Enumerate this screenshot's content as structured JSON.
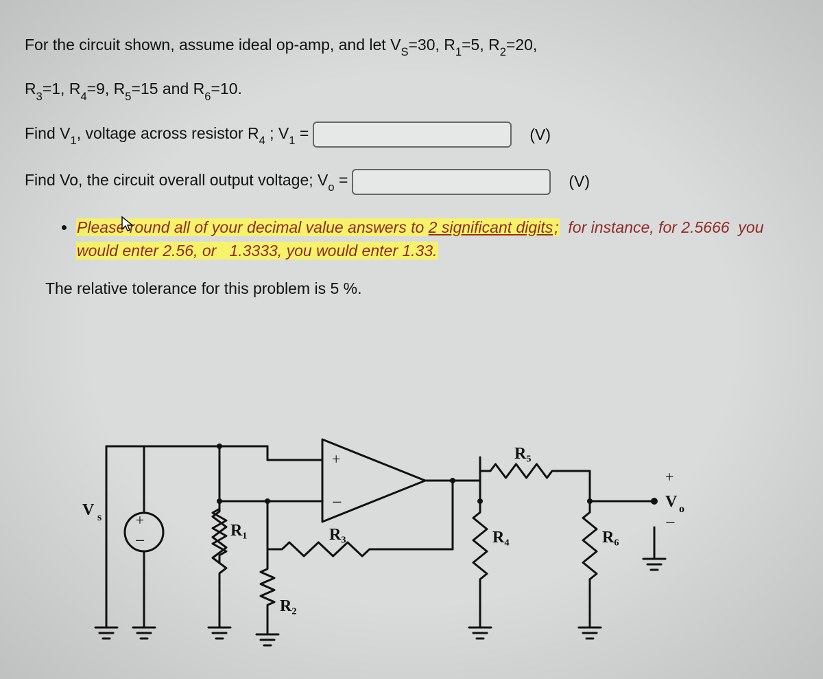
{
  "text": {
    "line1_a": "For the circuit shown, assume ideal op-amp, and let V",
    "line1_b": "=30,   R",
    "line1_c": "=5,  R",
    "line1_d": "=20,",
    "sub_S": "S",
    "sub_1": "1",
    "sub_2": "2",
    "line2_a": "R",
    "line2_b": "=1,  R",
    "line2_c": "=9,  R",
    "line2_d": "=15  and R",
    "line2_e": "=10.",
    "sub_3": "3",
    "sub_4": "4",
    "sub_5": "5",
    "sub_6": "6",
    "q1_a": "Find  V",
    "q1_b": ", voltage across resistor R",
    "q1_c": " ;   V",
    "q1_d": " = ",
    "unit_v": "(V)",
    "q2_a": "Find Vo,  the circuit overall output voltage; V",
    "sub_o": "o",
    "q2_b": " = ",
    "note_a": "Please round all of your decimal value answers to  ",
    "note_b": "2 significant digits",
    "note_c": ";  for instance, for 2.5666  you would enter 2.56, or   1.3333, you would enter 1.33.",
    "tolerance": "The relative tolerance for this problem is 5 %."
  },
  "circuit": {
    "stroke": "#111111",
    "stroke_width": 3,
    "labels": {
      "Vs": "V",
      "Vs_sub": "s",
      "R1": "R₁",
      "R2": "R₂",
      "R3": "R₃",
      "R4": "R₄",
      "R5": "R₅",
      "R6": "R₆",
      "plus": "+",
      "minus": "−",
      "Vo": "V",
      "Vo_sub": "o"
    },
    "font_size": 24,
    "font_family": "Georgia, 'Times New Roman', serif"
  }
}
